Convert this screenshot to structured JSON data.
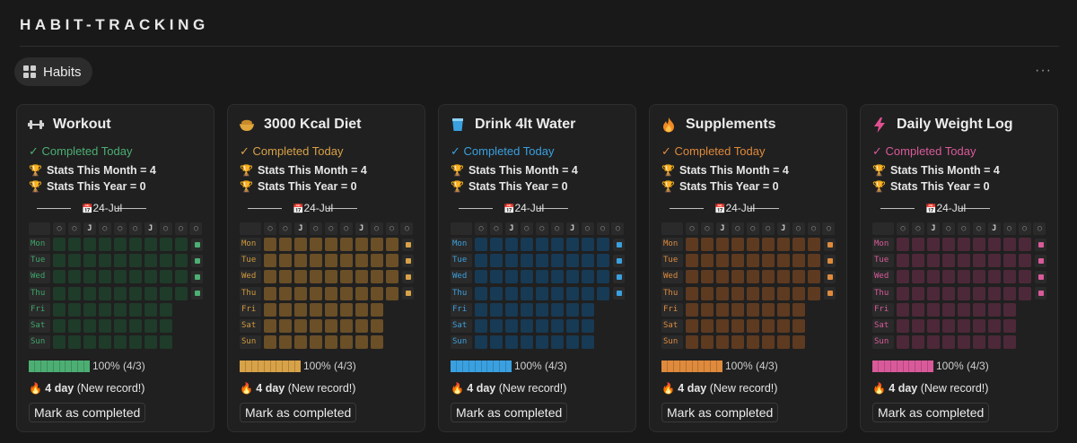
{
  "page": {
    "title": "HABIT-TRACKING",
    "view_tab": "Habits",
    "more_label": "···"
  },
  "common": {
    "completed": "✓ Completed Today",
    "stats_month": "Stats This Month = 4",
    "stats_year": "Stats This Year = 0",
    "date": "24-Jul",
    "calendar_icon": "calendar-icon",
    "header_cells": [
      "○",
      "○",
      "J",
      "○",
      "○",
      "○",
      "J",
      "○",
      "○",
      "○"
    ],
    "days": [
      "Mon",
      "Tue",
      "Wed",
      "Thu",
      "Fri",
      "Sat",
      "Sun"
    ],
    "progress_text": "100% (4/3)",
    "progress_fraction": 1.0,
    "streak_bold": "4 day",
    "streak_rest": " (New record!)",
    "button": "Mark as completed",
    "completed_days": [
      "Mon",
      "Tue",
      "Wed",
      "Thu"
    ],
    "week_columns_full": 9,
    "week_columns_short": 8
  },
  "habits": [
    {
      "name": "Workout",
      "icon": "dumbbell-icon",
      "color": "#4cae73",
      "cell": "#1f3b2a",
      "label": "#3ea66a"
    },
    {
      "name": "3000 Kcal Diet",
      "icon": "bowl-icon",
      "color": "#d8a248",
      "cell": "#6a4f27",
      "label": "#d19a3d"
    },
    {
      "name": "Drink 4lt Water",
      "icon": "glass-icon",
      "color": "#3aa0df",
      "cell": "#173a55",
      "label": "#3aa0df"
    },
    {
      "name": "Supplements",
      "icon": "fire-icon",
      "color": "#df8a3c",
      "cell": "#5e3a20",
      "label": "#df8a3c"
    },
    {
      "name": "Daily Weight Log",
      "icon": "bolt-icon",
      "color": "#d95a9a",
      "cell": "#4d2839",
      "label": "#d95a9a"
    }
  ]
}
